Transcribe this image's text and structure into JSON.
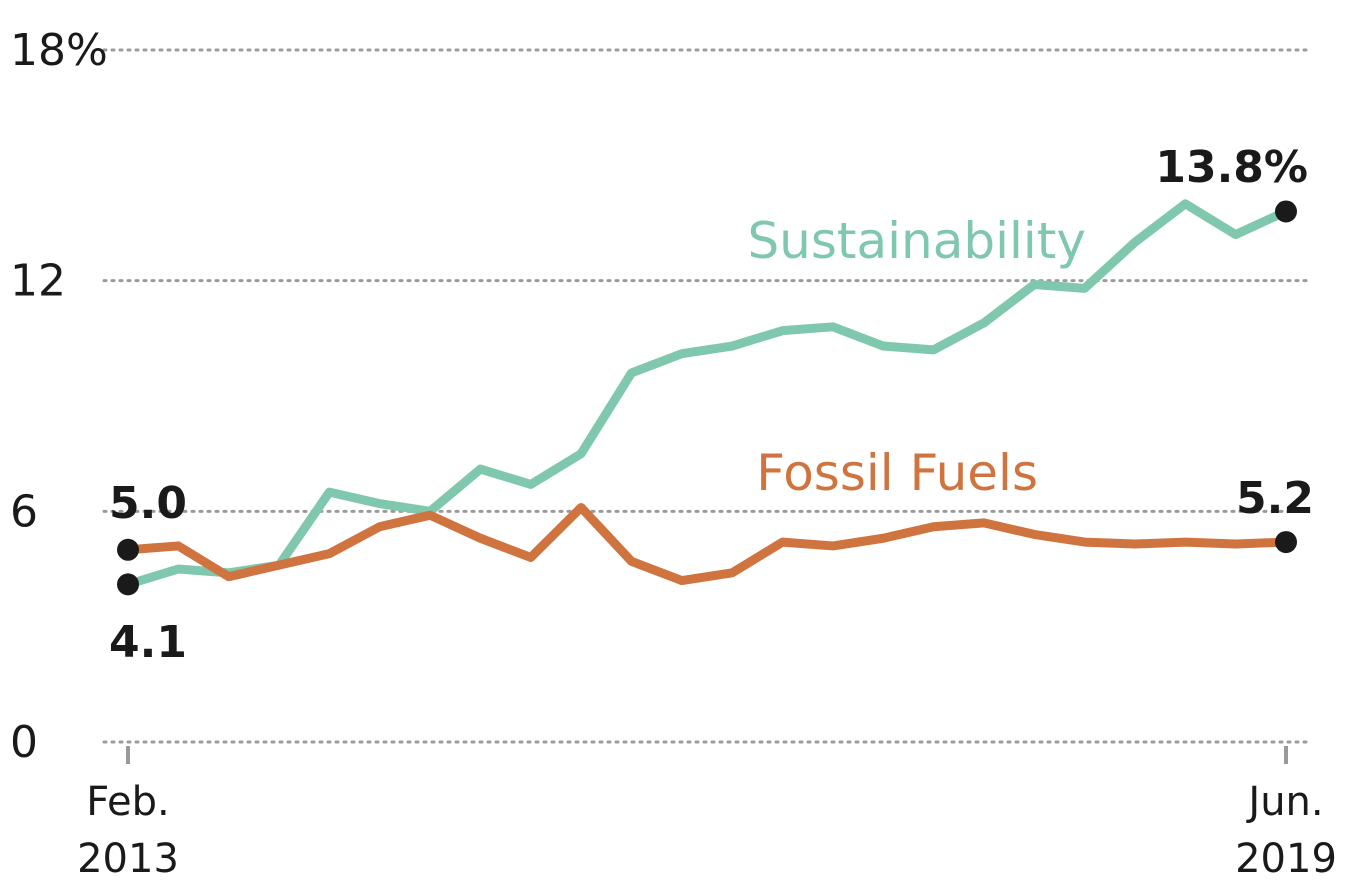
{
  "chart_data": {
    "type": "line",
    "ylim": [
      0,
      18
    ],
    "y_ticks": [
      0,
      6,
      12,
      18
    ],
    "y_tick_labels": [
      "0",
      "6",
      "12",
      "18%"
    ],
    "x_start_label": [
      "Feb.",
      "2013"
    ],
    "x_end_label": [
      "Jun.",
      "2019"
    ],
    "grid": true,
    "series": [
      {
        "name": "Sustainability",
        "color": "#7fc8ae",
        "start_label": "4.1",
        "end_label": "13.8%",
        "values": [
          4.1,
          4.5,
          4.4,
          4.6,
          6.5,
          6.2,
          6.0,
          7.1,
          6.7,
          7.5,
          9.6,
          10.1,
          10.3,
          10.7,
          10.8,
          10.3,
          10.2,
          10.9,
          11.9,
          11.8,
          13.0,
          14.0,
          13.2,
          13.8
        ]
      },
      {
        "name": "Fossil Fuels",
        "color": "#d0743f",
        "start_label": "5.0",
        "end_label": "5.2",
        "values": [
          5.0,
          5.1,
          4.3,
          4.6,
          4.9,
          5.6,
          5.9,
          5.3,
          4.8,
          6.1,
          4.7,
          4.2,
          4.4,
          5.2,
          5.1,
          5.3,
          5.6,
          5.7,
          5.4,
          5.2,
          5.15,
          5.2,
          5.15,
          5.2
        ]
      }
    ]
  }
}
